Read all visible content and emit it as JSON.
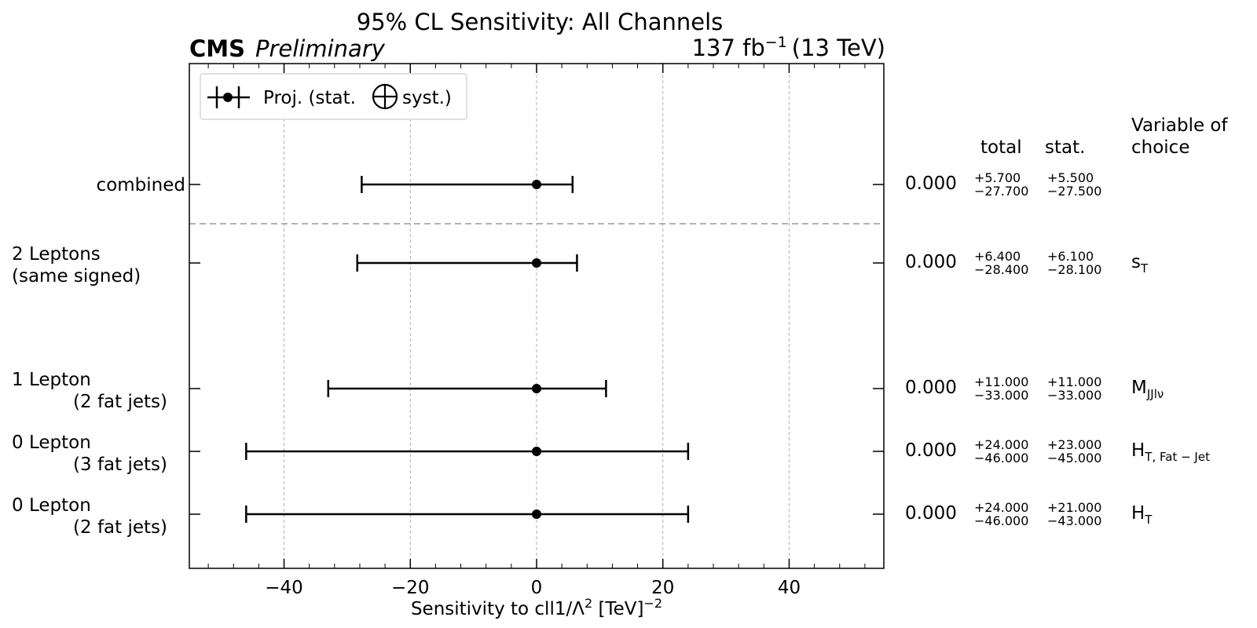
{
  "chart_data": {
    "type": "errorbar",
    "title": "95% CL Sensitivity: All Channels",
    "experiment": "CMS",
    "status": "Preliminary",
    "lumi_label": {
      "value": "137 fb",
      "exp": "−1",
      "energy": "(13 TeV)"
    },
    "xlabel": {
      "main": "Sensitivity to cll1/Λ",
      "exp": "2",
      "unit": " [TeV]",
      "unit_exp": "−2"
    },
    "xlim": [
      -55,
      55
    ],
    "xticks": [
      -40,
      -20,
      0,
      20,
      40
    ],
    "xtick_labels": [
      "−40",
      "−20",
      "0",
      "20",
      "40"
    ],
    "grid": "x-major dashed",
    "legend": {
      "position": "top-left",
      "label_before": "Proj. (stat.",
      "label_after": "syst.)"
    },
    "column_headers": {
      "total": "total",
      "stat": "stat.",
      "variable": [
        "Variable of",
        "choice"
      ]
    },
    "separator_after_index": 0,
    "rows": [
      {
        "label": [
          "combined"
        ],
        "y": 0,
        "central": 0.0,
        "central_label": "0.000",
        "total_up": 5.7,
        "total_down": -27.7,
        "total_up_label": "+5.700",
        "total_down_label": "−27.700",
        "stat_up_label": "+5.500",
        "stat_down_label": "−27.500",
        "var_main": "",
        "var_sub": ""
      },
      {
        "label": [
          "2 Leptons",
          "(same signed)"
        ],
        "y": 1.25,
        "central": 0.0,
        "central_label": "0.000",
        "total_up": 6.4,
        "total_down": -28.4,
        "total_up_label": "+6.400",
        "total_down_label": "−28.400",
        "stat_up_label": "+6.100",
        "stat_down_label": "−28.100",
        "var_main": "s",
        "var_sub": "T"
      },
      {
        "label": [
          "1 Lepton",
          "(2 fat jets)"
        ],
        "y": 3.25,
        "central": 0.0,
        "central_label": "0.000",
        "total_up": 11.0,
        "total_down": -33.0,
        "total_up_label": "+11.000",
        "total_down_label": "−33.000",
        "stat_up_label": "+11.000",
        "stat_down_label": "−33.000",
        "var_main": "M",
        "var_sub": "JJlν"
      },
      {
        "label": [
          "0 Lepton",
          "(3 fat jets)"
        ],
        "y": 4.25,
        "central": 0.0,
        "central_label": "0.000",
        "total_up": 24.0,
        "total_down": -46.0,
        "total_up_label": "+24.000",
        "total_down_label": "−46.000",
        "stat_up_label": "+23.000",
        "stat_down_label": "−45.000",
        "var_main": "H",
        "var_sub": "T, Fat − Jet"
      },
      {
        "label": [
          "0 Lepton",
          "(2 fat jets)"
        ],
        "y": 5.25,
        "central": 0.0,
        "central_label": "0.000",
        "total_up": 24.0,
        "total_down": -46.0,
        "total_up_label": "+24.000",
        "total_down_label": "−46.000",
        "stat_up_label": "+21.000",
        "stat_down_label": "−43.000",
        "var_main": "H",
        "var_sub": "T"
      }
    ]
  }
}
